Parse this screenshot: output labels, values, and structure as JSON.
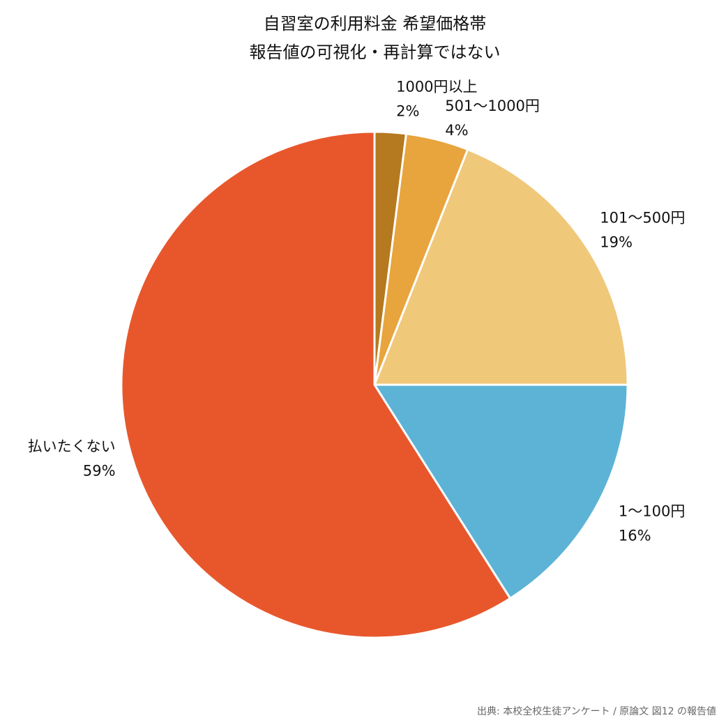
{
  "chart_data": {
    "type": "pie",
    "title_lines": [
      "自習室の利用料金 希望価格帯",
      "報告値の可視化・再計算ではない"
    ],
    "start_angle_deg": 90,
    "direction": "clockwise",
    "slices": [
      {
        "label": "1000円以上",
        "value": 2,
        "display": "2%",
        "color": "#b5791f"
      },
      {
        "label": "501〜1000円",
        "value": 4,
        "display": "4%",
        "color": "#e8a43d"
      },
      {
        "label": "101〜500円",
        "value": 19,
        "display": "19%",
        "color": "#f0c87a"
      },
      {
        "label": "1〜100円",
        "value": 16,
        "display": "16%",
        "color": "#5db3d6"
      },
      {
        "label": "払いたくない",
        "value": 59,
        "display": "59%",
        "color": "#e8572c"
      }
    ],
    "slice_edge_color": "#ffffff"
  },
  "source_note": "出典: 本校全校生徒アンケート / 原論文 図12 の報告値"
}
